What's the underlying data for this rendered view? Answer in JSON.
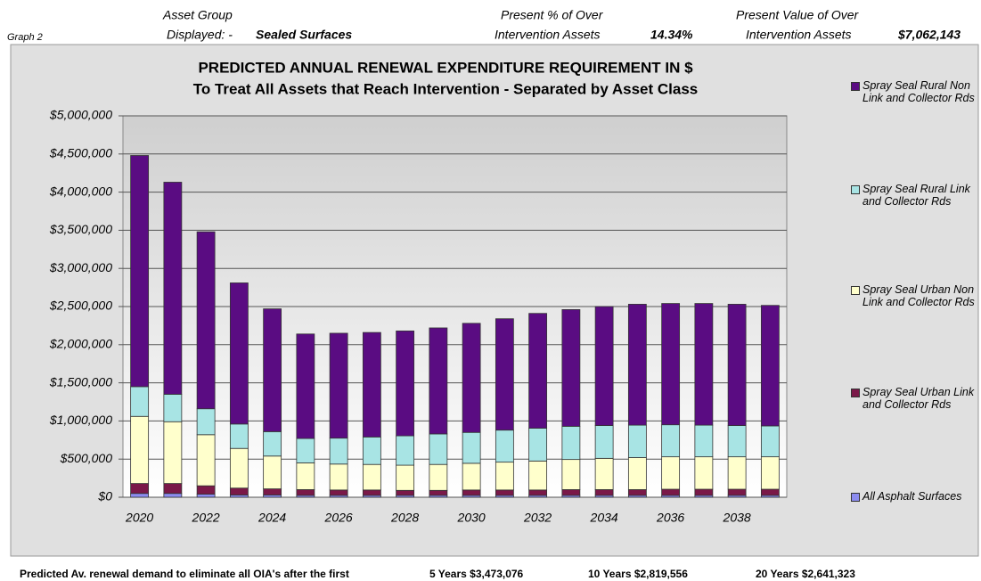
{
  "header": {
    "graph": "Graph 2",
    "group_label_1": "Asset Group",
    "group_label_2": "Displayed: -",
    "group_value": "Sealed Surfaces",
    "pct_label_1": "Present % of Over",
    "pct_label_2": "Intervention Assets",
    "pct_value": "14.34%",
    "value_label_1": "Present Value of Over",
    "value_label_2": "Intervention Assets",
    "value_value": "$7,062,143"
  },
  "footer": {
    "text": "Predicted Av. renewal demand to eliminate all OIA's after the first",
    "five": "5 Years $3,473,076",
    "ten": "10 Years $2,819,556",
    "twenty": "20 Years $2,641,323"
  },
  "chart_data": {
    "type": "stacked_bar",
    "title": "PREDICTED ANNUAL RENEWAL EXPENDITURE REQUIREMENT IN $",
    "subtitle": "To Treat All Assets that Reach Intervention - Separated by Asset Class",
    "categories": [
      "2020",
      null,
      "2022",
      null,
      "2024",
      null,
      "2026",
      null,
      "2028",
      null,
      "2030",
      null,
      "2032",
      null,
      "2034",
      null,
      "2036",
      null,
      "2038",
      null
    ],
    "series": [
      {
        "name": "All Asphalt Surfaces",
        "color": "#8c8cf0",
        "values": [
          50000,
          50000,
          40000,
          30000,
          30000,
          25000,
          25000,
          25000,
          25000,
          25000,
          25000,
          25000,
          25000,
          25000,
          25000,
          25000,
          25000,
          25000,
          25000,
          25000
        ]
      },
      {
        "name": "Spray Seal Urban Link and Collector Rds",
        "color": "#7a1848",
        "values": [
          130000,
          130000,
          110000,
          90000,
          80000,
          75000,
          70000,
          70000,
          65000,
          65000,
          70000,
          70000,
          70000,
          75000,
          75000,
          75000,
          80000,
          80000,
          80000,
          80000
        ]
      },
      {
        "name": "Spray Seal Urban Non Link and Collector Rds",
        "color": "#ffffcc",
        "values": [
          880000,
          810000,
          670000,
          520000,
          430000,
          350000,
          340000,
          335000,
          330000,
          340000,
          350000,
          365000,
          380000,
          395000,
          410000,
          420000,
          425000,
          425000,
          425000,
          425000
        ]
      },
      {
        "name": "Spray Seal Rural Link and Collector Rds",
        "color": "#a8e4e4",
        "values": [
          390000,
          360000,
          340000,
          320000,
          320000,
          320000,
          340000,
          360000,
          385000,
          400000,
          405000,
          420000,
          430000,
          435000,
          430000,
          425000,
          420000,
          415000,
          410000,
          405000
        ]
      },
      {
        "name": "Spray Seal Rural Non Link and Collector Rds",
        "color": "#5a0c82",
        "values": [
          3030000,
          2780000,
          2320000,
          1850000,
          1610000,
          1370000,
          1375000,
          1370000,
          1375000,
          1390000,
          1430000,
          1460000,
          1505000,
          1530000,
          1560000,
          1585000,
          1590000,
          1595000,
          1590000,
          1580000
        ]
      }
    ],
    "ylim": [
      0,
      5000000
    ],
    "yticks": [
      {
        "value": 0,
        "label": "$0"
      },
      {
        "value": 500000,
        "label": "$500,000"
      },
      {
        "value": 1000000,
        "label": "$1,000,000"
      },
      {
        "value": 1500000,
        "label": "$1,500,000"
      },
      {
        "value": 2000000,
        "label": "$2,000,000"
      },
      {
        "value": 2500000,
        "label": "$2,500,000"
      },
      {
        "value": 3000000,
        "label": "$3,000,000"
      },
      {
        "value": 3500000,
        "label": "$3,500,000"
      },
      {
        "value": 4000000,
        "label": "$4,000,000"
      },
      {
        "value": 4500000,
        "label": "$4,500,000"
      },
      {
        "value": 5000000,
        "label": "$5,000,000"
      }
    ],
    "grid": true
  }
}
